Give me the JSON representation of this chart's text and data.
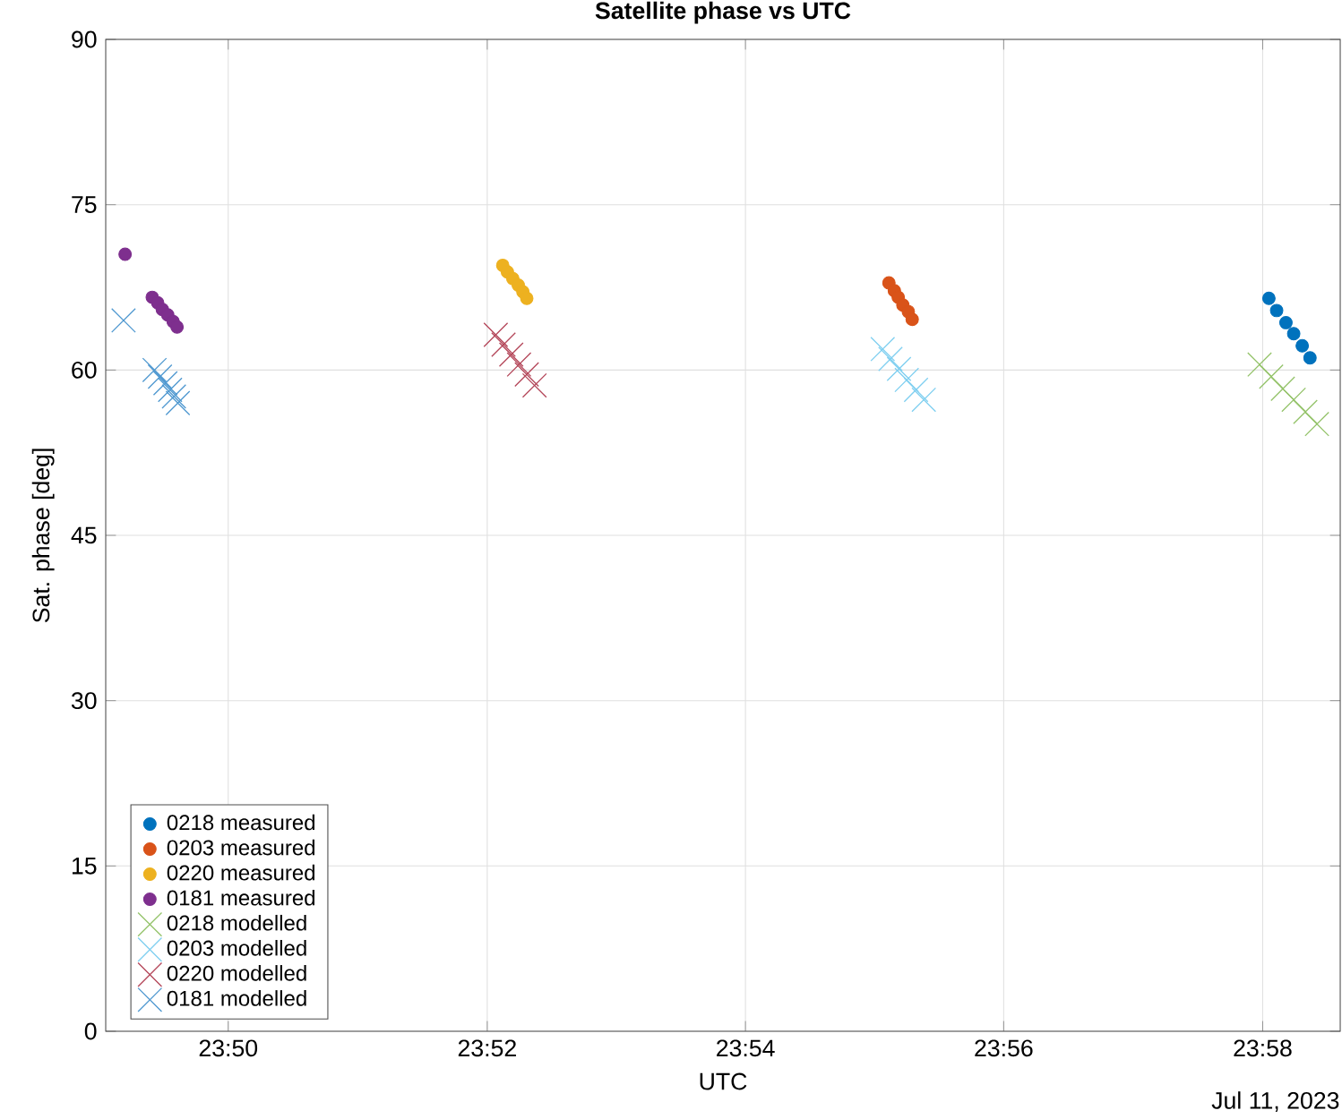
{
  "chart_data": {
    "type": "scatter",
    "title": "Satellite phase vs UTC",
    "xlabel": "UTC",
    "ylabel": "Sat. phase [deg]",
    "annotations": [
      "Jul 11, 2023"
    ],
    "xlim": [
      23.8175,
      23.9767
    ],
    "ylim": [
      0,
      90
    ],
    "xticks": [
      {
        "value": 23.8333,
        "label": "23:50"
      },
      {
        "value": 23.8667,
        "label": "23:52"
      },
      {
        "value": 23.9,
        "label": "23:54"
      },
      {
        "value": 23.9333,
        "label": "23:56"
      },
      {
        "value": 23.9667,
        "label": "23:58"
      }
    ],
    "yticks": [
      0,
      15,
      30,
      45,
      60,
      75,
      90
    ],
    "grid": true,
    "legend": "bottom left",
    "series": [
      {
        "name": "0218 measured",
        "color": "#0072bd",
        "marker": "circle",
        "x": [
          23.9675,
          23.9685,
          23.9697,
          23.9707,
          23.9718,
          23.9728
        ],
        "values": [
          66.5,
          65.4,
          64.3,
          63.3,
          62.2,
          61.1
        ]
      },
      {
        "name": "0203 measured",
        "color": "#d95319",
        "marker": "circle",
        "x": [
          23.9185,
          23.9192,
          23.9197,
          23.9203,
          23.921,
          23.9215
        ],
        "values": [
          67.9,
          67.2,
          66.6,
          65.9,
          65.3,
          64.6
        ]
      },
      {
        "name": "0220 measured",
        "color": "#edb120",
        "marker": "circle",
        "x": [
          23.8687,
          23.8693,
          23.87,
          23.8707,
          23.8713,
          23.8718
        ],
        "values": [
          69.5,
          68.9,
          68.3,
          67.7,
          67.1,
          66.5
        ]
      },
      {
        "name": "0181 measured",
        "color": "#7e2f8e",
        "marker": "circle",
        "x": [
          23.82,
          23.8235,
          23.8242,
          23.8248,
          23.8255,
          23.8262,
          23.8267
        ],
        "values": [
          70.5,
          66.6,
          66.1,
          65.5,
          65.0,
          64.4,
          63.9
        ]
      },
      {
        "name": "0218 modelled",
        "color": "#94c36a",
        "marker": "cross",
        "x": [
          23.9663,
          23.9678,
          23.9693,
          23.9707,
          23.9722,
          23.9737
        ],
        "values": [
          60.5,
          59.4,
          58.3,
          57.3,
          56.2,
          55.1
        ]
      },
      {
        "name": "0203 modelled",
        "color": "#7fcff0",
        "marker": "cross",
        "x": [
          23.9177,
          23.9187,
          23.9198,
          23.9208,
          23.922,
          23.923
        ],
        "values": [
          61.9,
          61.0,
          60.1,
          59.1,
          58.2,
          57.3
        ]
      },
      {
        "name": "0220 modelled",
        "color": "#b4475a",
        "marker": "cross",
        "x": [
          23.8678,
          23.8688,
          23.8698,
          23.8708,
          23.8718,
          23.8728
        ],
        "values": [
          63.2,
          62.3,
          61.4,
          60.5,
          59.6,
          58.6
        ]
      },
      {
        "name": "0181 modelled",
        "color": "#4f98d0",
        "marker": "cross",
        "x": [
          23.8198,
          23.8238,
          23.8245,
          23.8252,
          23.8258,
          23.8263,
          23.8268
        ],
        "values": [
          64.5,
          60.0,
          59.4,
          58.8,
          58.2,
          57.6,
          57.0
        ]
      }
    ]
  }
}
